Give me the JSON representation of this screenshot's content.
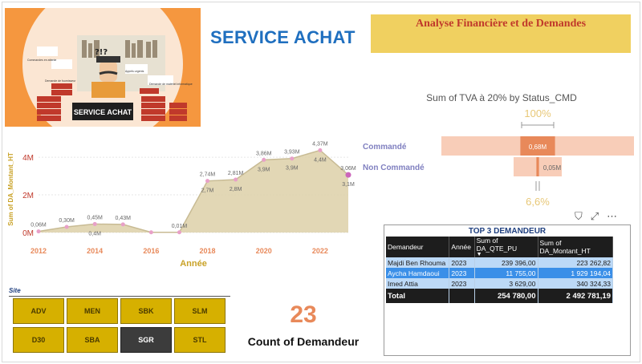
{
  "page": {
    "title": "SERVICE ACHAT",
    "header": "Analyse Financière et de Demandes"
  },
  "banner": {
    "sign": "SERVICE ACHAT",
    "bubbles": [
      "Commandes en attente",
      "Demande de fournisseur",
      "Appels urgents",
      "Demande de matériel informatique"
    ],
    "symbols": "?!?"
  },
  "line_chart_meta": {
    "icon_semantics": [
      "line-area-chart"
    ]
  },
  "chart_data": [
    {
      "type": "line",
      "title": "",
      "xlabel": "Année",
      "ylabel": "Sum of DA_Montant_HT",
      "x_ticks": [
        "2012",
        "2014",
        "2016",
        "2018",
        "2020",
        "2022"
      ],
      "y_ticks": [
        "0M",
        "2M",
        "4M"
      ],
      "ylim": [
        0,
        4.6
      ],
      "xlim": [
        2012,
        2023
      ],
      "area": true,
      "color": "#ddd0a8",
      "line_color": "#c8bb94",
      "point_color": "#e8a0c8",
      "points": [
        {
          "x": 2012,
          "y": 0.06,
          "label": "0,06M"
        },
        {
          "x": 2013,
          "y": 0.3,
          "label": "0,30M"
        },
        {
          "x": 2014,
          "y": 0.45,
          "label": "0,45M"
        },
        {
          "x": 2015,
          "y": 0.43,
          "label": "0,43M"
        },
        {
          "x": 2016,
          "y": 0.01,
          "label": ""
        },
        {
          "x": 2017,
          "y": 0.01,
          "label": "0,01M"
        },
        {
          "x": 2018,
          "y": 2.74,
          "label": "2,74M"
        },
        {
          "x": 2019,
          "y": 2.81,
          "label": "2,81M"
        },
        {
          "x": 2020,
          "y": 3.86,
          "label": "3,86M"
        },
        {
          "x": 2021,
          "y": 3.93,
          "label": "3,93M"
        },
        {
          "x": 2022,
          "y": 4.37,
          "label": "4,37M"
        },
        {
          "x": 2023,
          "y": 3.06,
          "label": "3,06M"
        }
      ],
      "secondary_labels": [
        {
          "x": 2014,
          "label": "0,4M"
        },
        {
          "x": 2018,
          "label": "2,7M"
        },
        {
          "x": 2019,
          "label": "2,8M"
        },
        {
          "x": 2020,
          "label": "3,9M"
        },
        {
          "x": 2021,
          "label": "3,9M"
        },
        {
          "x": 2022,
          "label": "4,4M"
        },
        {
          "x": 2023,
          "label": "3,1M"
        }
      ]
    },
    {
      "type": "bar",
      "title": "Sum of TVA à 20% by Status_CMD",
      "categories": [
        "Commandé",
        "Non Commandé"
      ],
      "values": [
        0.68,
        0.05
      ],
      "value_labels": [
        "0,68M",
        "0,05M"
      ],
      "top_percent": "100%",
      "bottom_percent": "6,6%",
      "bar_color": "#e8895a",
      "bg_color": "#f8cdb8",
      "label_color": "#8080c0"
    }
  ],
  "table": {
    "title": "TOP 3 DEMANDEUR",
    "columns": [
      "Demandeur",
      "Année",
      "Sum of DA_QTE_PU",
      "Sum of DA_Montant_HT"
    ],
    "rows": [
      [
        "Majdi Ben Rhouma",
        "2023",
        "239 396,00",
        "223 262,82"
      ],
      [
        "Aycha Hamdaoui",
        "2023",
        "11 755,00",
        "1 929 194,04"
      ],
      [
        "Imed Attia",
        "2023",
        "3 629,00",
        "340 324,33"
      ]
    ],
    "total": [
      "Total",
      "",
      "254 780,00",
      "2 492 781,19"
    ]
  },
  "toolbar": {
    "icons": [
      "filter-icon",
      "expand-icon",
      "more-options-icon"
    ],
    "filter_glyph": "⛉",
    "expand_glyph": "⤢",
    "more_glyph": "⋯"
  },
  "slicer": {
    "label": "Site",
    "items": [
      "ADV",
      "MEN",
      "SBK",
      "SLM",
      "D30",
      "SBA",
      "SGR",
      "STL"
    ],
    "selected": "SGR"
  },
  "kpi": {
    "value": "23",
    "label": "Count of Demandeur"
  }
}
